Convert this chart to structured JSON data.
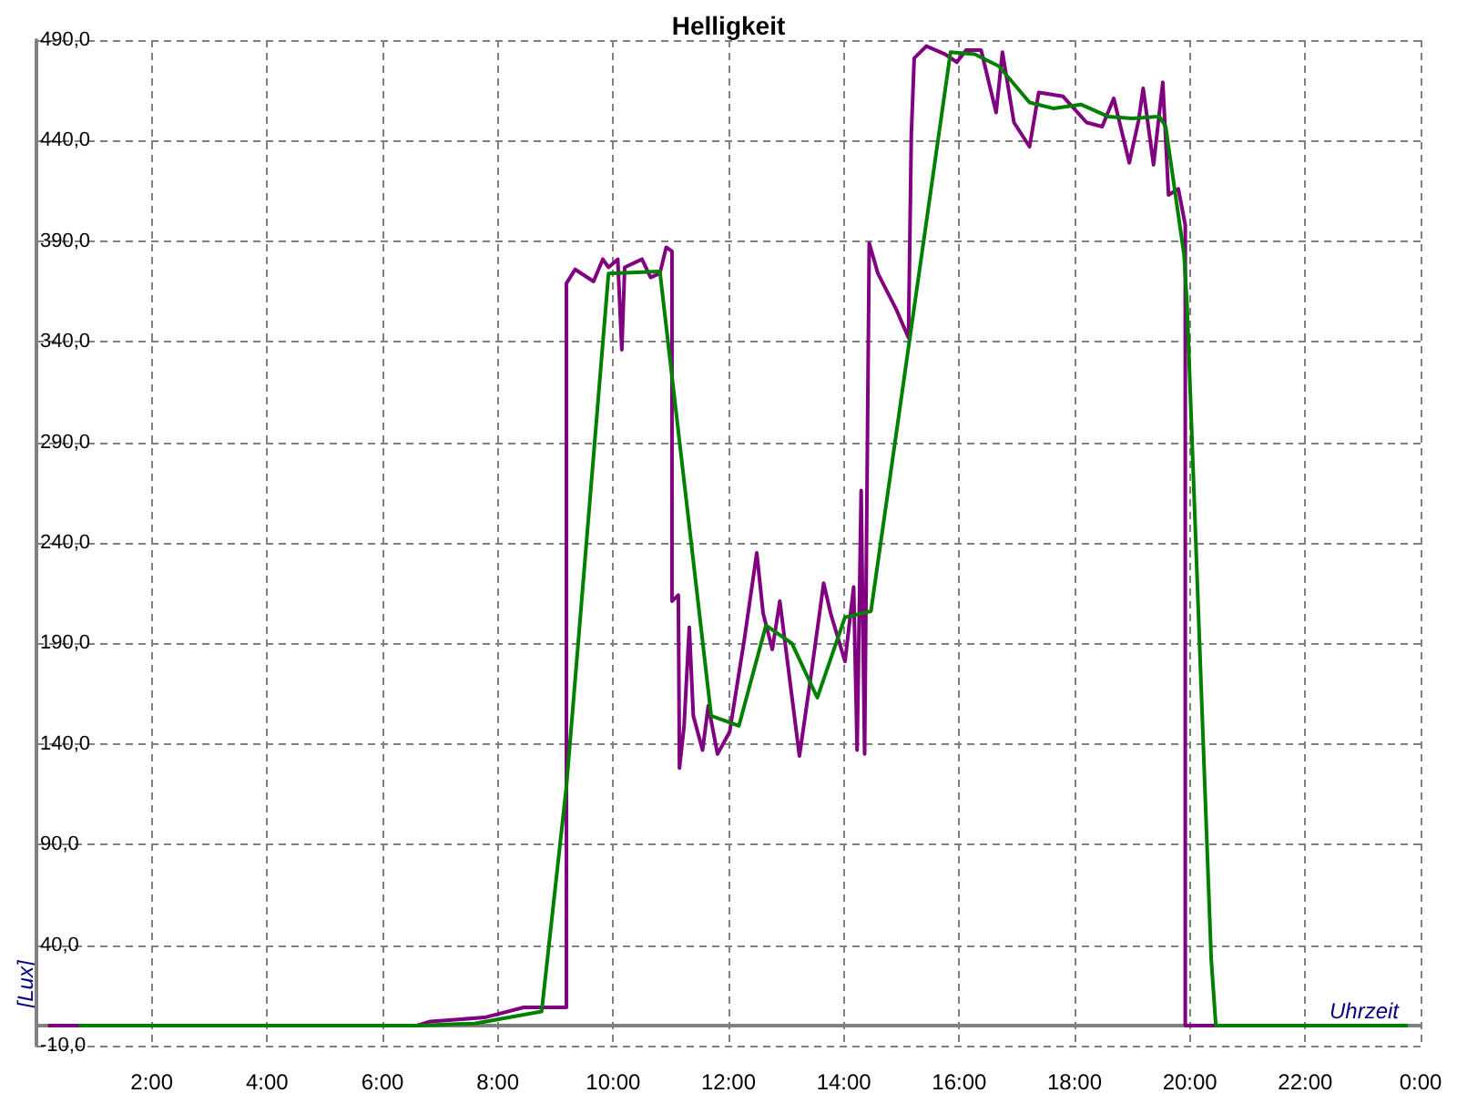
{
  "chart_data": {
    "type": "line",
    "title": "Helligkeit",
    "xlabel": "Uhrzeit",
    "ylabel": "[Lux]",
    "xlim": [
      0,
      24
    ],
    "xticks": [
      {
        "value": 0,
        "label": null
      },
      {
        "value": 2,
        "label": "2:00"
      },
      {
        "value": 4,
        "label": "4:00"
      },
      {
        "value": 6,
        "label": "6:00"
      },
      {
        "value": 8,
        "label": "8:00"
      },
      {
        "value": 10,
        "label": "10:00"
      },
      {
        "value": 12,
        "label": "12:00"
      },
      {
        "value": 14,
        "label": "14:00"
      },
      {
        "value": 16,
        "label": "16:00"
      },
      {
        "value": 18,
        "label": "18:00"
      },
      {
        "value": 20,
        "label": "20:00"
      },
      {
        "value": 22,
        "label": "22:00"
      },
      {
        "value": 24,
        "label": "0:00"
      }
    ],
    "ylim": [
      -10,
      490
    ],
    "yticks": [
      {
        "value": -10,
        "label": "-10,0"
      },
      {
        "value": 40,
        "label": "40,0"
      },
      {
        "value": 90,
        "label": "90,0"
      },
      {
        "value": 140,
        "label": "140,0"
      },
      {
        "value": 190,
        "label": "190,0"
      },
      {
        "value": 240,
        "label": "240,0"
      },
      {
        "value": 290,
        "label": "290,0"
      },
      {
        "value": 340,
        "label": "340,0"
      },
      {
        "value": 390,
        "label": "390,0"
      },
      {
        "value": 440,
        "label": "440,0"
      },
      {
        "value": 490,
        "label": "490,0"
      }
    ],
    "grid": true,
    "marker": "none",
    "series": [
      {
        "color": "#800080",
        "x": [
          0.2,
          6.6,
          6.83,
          7.77,
          8.45,
          9.19,
          9.19,
          9.34,
          9.66,
          9.82,
          9.92,
          10.08,
          10.15,
          10.2,
          10.5,
          10.65,
          10.81,
          10.92,
          11.02,
          11.02,
          11.13,
          11.15,
          11.23,
          11.32,
          11.39,
          11.55,
          11.65,
          11.81,
          12.02,
          12.28,
          12.49,
          12.6,
          12.76,
          12.89,
          13.23,
          13.44,
          13.65,
          13.77,
          14.02,
          14.17,
          14.23,
          14.3,
          14.36,
          14.44,
          14.59,
          14.91,
          15.12,
          15.17,
          15.22,
          15.43,
          15.75,
          15.96,
          16.12,
          16.38,
          16.64,
          16.75,
          16.95,
          17.22,
          17.38,
          17.8,
          18.21,
          18.48,
          18.68,
          18.95,
          19.11,
          19.19,
          19.37,
          19.53,
          19.63,
          19.8,
          19.92,
          19.92,
          20.44
        ],
        "values": [
          0,
          0,
          2,
          4,
          9,
          9,
          369,
          376,
          370,
          381,
          377,
          381,
          336,
          377,
          381,
          372,
          374,
          387,
          385,
          211,
          214,
          128,
          149,
          198,
          154,
          137,
          159,
          135,
          146,
          193,
          235,
          205,
          187,
          211,
          134,
          176,
          220,
          205,
          181,
          218,
          137,
          266,
          135,
          389,
          374,
          356,
          342,
          443,
          481,
          487,
          483,
          479,
          485,
          485,
          454,
          484,
          449,
          437,
          464,
          462,
          449,
          447,
          461,
          429,
          450,
          466,
          428,
          469,
          413,
          416,
          398,
          0,
          0
        ]
      },
      {
        "color": "#008000",
        "x": [
          0.73,
          6.6,
          7.6,
          8.76,
          9.19,
          9.92,
          10.81,
          11.7,
          12.18,
          12.65,
          13.1,
          13.54,
          14.02,
          14.47,
          15.85,
          16.27,
          16.69,
          17.22,
          17.64,
          18.11,
          18.58,
          19.0,
          19.47,
          19.58,
          19.9,
          19.95,
          20.37,
          20.45,
          23.78
        ],
        "values": [
          0,
          0,
          1,
          7,
          119,
          374,
          375,
          154,
          149,
          199,
          190,
          163,
          203,
          206,
          484,
          483,
          477,
          459,
          456,
          458,
          452,
          451,
          452,
          447,
          383,
          359,
          33,
          0,
          0
        ]
      }
    ]
  }
}
